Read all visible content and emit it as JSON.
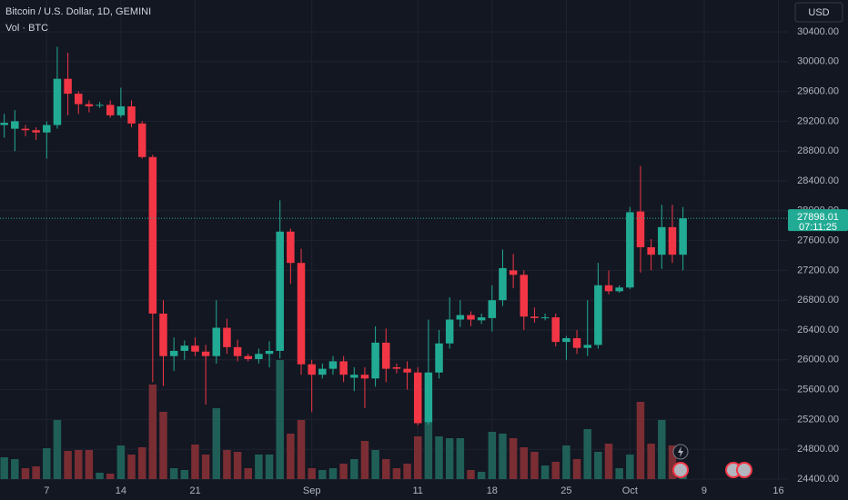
{
  "chart_data": {
    "type": "candlestick",
    "title": "Bitcoin / U.S. Dollar, 1D, GEMINI",
    "volume_label": "Vol · BTC",
    "currency": "USD",
    "countdown": "07:11:25",
    "up_color": "#22ab94",
    "down_color": "#f23645",
    "volume_up_color": "#1f5f58",
    "volume_down_color": "#7a2d33",
    "grid": true,
    "x": [
      3,
      4,
      5,
      6,
      7,
      8,
      9,
      10,
      11,
      12,
      13,
      14,
      15,
      16,
      17,
      18,
      19,
      20,
      21,
      22,
      23,
      24,
      25,
      26,
      27,
      28,
      29,
      30,
      31,
      32,
      33,
      34,
      35,
      36,
      37,
      38,
      39,
      40,
      41,
      42,
      43,
      44,
      45,
      46,
      47,
      48,
      49,
      50,
      51,
      52,
      53,
      54,
      55,
      56,
      57,
      58,
      59,
      60,
      61,
      62,
      63,
      64,
      65,
      66,
      67
    ],
    "open": [
      29150,
      29100,
      29100,
      29080,
      29050,
      29150,
      29770,
      29570,
      29430,
      29410,
      29420,
      29280,
      29400,
      29170,
      28720,
      26620,
      26050,
      26120,
      26190,
      26110,
      26050,
      26430,
      26170,
      26050,
      26010,
      26080,
      26120,
      27720,
      27300,
      25940,
      25800,
      25880,
      25980,
      25760,
      25800,
      25750,
      26230,
      25900,
      25880,
      25830,
      25160,
      25830,
      26220,
      26540,
      26600,
      26530,
      26560,
      26800,
      27200,
      27140,
      26580,
      26560,
      26570,
      26240,
      26290,
      26160,
      26200,
      27000,
      26920,
      26970,
      27990,
      27510,
      27410,
      27780,
      27410
    ],
    "high": [
      29300,
      29350,
      29150,
      29120,
      29200,
      30200,
      30120,
      29600,
      29480,
      29460,
      29480,
      29650,
      29480,
      29200,
      28750,
      26800,
      26300,
      26260,
      26300,
      26200,
      26800,
      26550,
      26270,
      26080,
      26150,
      26250,
      28140,
      27760,
      27490,
      26000,
      25950,
      26050,
      26050,
      25900,
      25900,
      26450,
      26420,
      25950,
      25980,
      25900,
      26540,
      26400,
      26840,
      26800,
      26650,
      26620,
      27000,
      27480,
      27420,
      27200,
      26700,
      26620,
      26620,
      26320,
      26400,
      26800,
      27300,
      27200,
      27000,
      28050,
      28600,
      27620,
      28080,
      28080,
      28050
    ],
    "low": [
      28980,
      28800,
      29000,
      28950,
      28700,
      29100,
      29280,
      29300,
      29320,
      29380,
      29250,
      29250,
      29120,
      28700,
      25700,
      25650,
      25850,
      26000,
      26050,
      25400,
      25950,
      26080,
      25980,
      25980,
      25950,
      25900,
      26020,
      27020,
      25800,
      25300,
      25750,
      25800,
      25700,
      25580,
      25350,
      25640,
      25700,
      25820,
      25600,
      25120,
      25130,
      25750,
      26150,
      26440,
      26450,
      26480,
      26380,
      26720,
      26960,
      26400,
      26500,
      26530,
      26180,
      26000,
      26080,
      26050,
      26150,
      26880,
      26900,
      26950,
      27170,
      27200,
      27220,
      27300,
      27200
    ],
    "close": [
      29180,
      29200,
      29080,
      29050,
      29150,
      29770,
      29570,
      29430,
      29400,
      29420,
      29280,
      29400,
      29170,
      28720,
      26620,
      26050,
      26120,
      26190,
      26110,
      26050,
      26430,
      26170,
      26050,
      26010,
      26080,
      26120,
      27720,
      27300,
      25940,
      25800,
      25880,
      25980,
      25800,
      25800,
      25750,
      26230,
      25880,
      25880,
      25830,
      25150,
      25830,
      26220,
      26540,
      26600,
      26540,
      26570,
      26800,
      27230,
      27140,
      26580,
      26560,
      26570,
      26240,
      26290,
      26160,
      26200,
      27000,
      26920,
      26970,
      27980,
      27510,
      27410,
      27780,
      27410,
      27898.01
    ],
    "volume": [
      240,
      220,
      120,
      140,
      340,
      650,
      310,
      320,
      320,
      70,
      60,
      370,
      270,
      350,
      1040,
      740,
      120,
      100,
      380,
      270,
      780,
      320,
      300,
      120,
      270,
      270,
      1310,
      500,
      650,
      120,
      100,
      120,
      170,
      220,
      420,
      320,
      220,
      120,
      170,
      470,
      620,
      470,
      450,
      450,
      100,
      80,
      520,
      500,
      450,
      350,
      300,
      150,
      190,
      370,
      220,
      550,
      300,
      390,
      120,
      270,
      850,
      390,
      650,
      370,
      120
    ],
    "xlim": [
      2.6,
      76.9
    ],
    "xticks": [
      7,
      14,
      21,
      {
        "value": 32,
        "label": "Sep"
      },
      {
        "value": 42,
        "label": "11"
      },
      {
        "value": 49,
        "label": "18"
      },
      {
        "value": 56,
        "label": "25"
      },
      {
        "value": 62,
        "label": "Oct"
      },
      {
        "value": 69,
        "label": "9"
      },
      {
        "value": 76,
        "label": "16"
      }
    ],
    "ylim": [
      24400,
      30827
    ],
    "yticks": [
      {
        "value": 24400,
        "label": "24400.00"
      },
      {
        "value": 24800,
        "label": "24800.00"
      },
      {
        "value": 25200,
        "label": "25200.00"
      },
      {
        "value": 25600,
        "label": "25600.00"
      },
      {
        "value": 26000,
        "label": "26000.00"
      },
      {
        "value": 26400,
        "label": "26400.00"
      },
      {
        "value": 26800,
        "label": "26800.00"
      },
      {
        "value": 27200,
        "label": "27200.00"
      },
      {
        "value": 27600,
        "label": "27600.00"
      },
      {
        "value": 28000,
        "label": "28000.00"
      },
      {
        "value": 28400,
        "label": "28400.00"
      },
      {
        "value": 28800,
        "label": "28800.00"
      },
      {
        "value": 29200,
        "label": "29200.00"
      },
      {
        "value": 29600,
        "label": "29600.00"
      },
      {
        "value": 30000,
        "label": "30000.00"
      },
      {
        "value": 30400,
        "label": "30400.00"
      }
    ]
  }
}
